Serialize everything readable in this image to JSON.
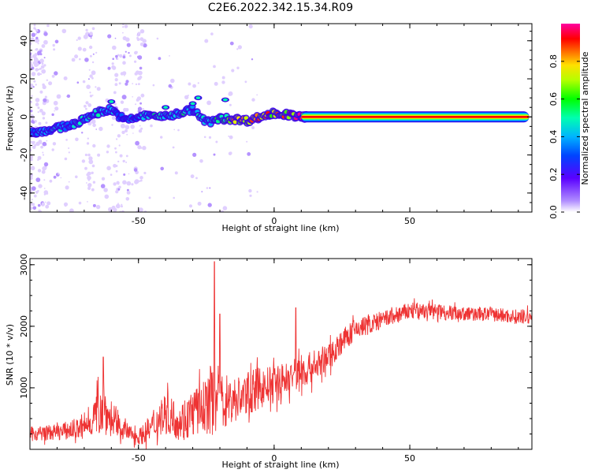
{
  "title": "C2E6.2022.342.15.34.R09",
  "colors": {
    "snr_line": "#ee3333",
    "spectrum_band": "#ff0000",
    "background": "#ffffff"
  },
  "chart_data": [
    {
      "type": "heatmap",
      "name": "spectrogram",
      "xlabel": "Height of straight line (km)",
      "ylabel": "Frequency (Hz)",
      "xlim": [
        -90,
        95
      ],
      "ylim": [
        -50,
        49
      ],
      "x_ticks": [
        -50,
        0,
        50
      ],
      "y_ticks": [
        -40,
        -20,
        0,
        20,
        40
      ],
      "colorbar": {
        "label": "Normalized spectral amplitude",
        "range": [
          0.0,
          1.0
        ],
        "ticks": [
          "0.0",
          "0.2",
          "0.4",
          "0.6",
          "0.8"
        ],
        "colormap": "rainbow (purple → blue → cyan → green → yellow → red → magenta)"
      },
      "ridge": {
        "description": "dominant spectral peak frequency vs height",
        "x": [
          -88,
          -80,
          -72,
          -66,
          -60,
          -55,
          -50,
          -45,
          -40,
          -35,
          -30,
          -25,
          -20,
          -15,
          -10,
          -5,
          0,
          5,
          10,
          20,
          40,
          60,
          80,
          94
        ],
        "y": [
          -8,
          -6,
          -3,
          2,
          4,
          -2,
          0,
          1,
          0,
          2,
          4,
          -3,
          -1,
          -1,
          -2,
          0,
          2,
          1,
          0,
          0,
          0,
          0,
          0,
          0
        ],
        "amplitude": [
          0.4,
          0.45,
          0.45,
          0.5,
          0.45,
          0.35,
          0.45,
          0.5,
          0.5,
          0.55,
          0.5,
          0.45,
          0.6,
          0.8,
          0.85,
          0.85,
          0.85,
          0.9,
          0.95,
          0.97,
          0.97,
          0.97,
          0.97,
          0.97
        ]
      }
    },
    {
      "type": "line",
      "name": "snr",
      "xlabel": "Height of straight line (km)",
      "ylabel": "SNR (10 * v/v)",
      "xlim": [
        -90,
        95
      ],
      "ylim": [
        0,
        3100
      ],
      "x_ticks": [
        -50,
        0,
        50
      ],
      "y_ticks": [
        1000,
        2000,
        3000
      ],
      "envelope": {
        "x": [
          -90,
          -80,
          -70,
          -63,
          -60,
          -55,
          -50,
          -45,
          -40,
          -35,
          -30,
          -25,
          -22,
          -20,
          -15,
          -10,
          -5,
          0,
          5,
          10,
          15,
          20,
          25,
          30,
          40,
          50,
          60,
          70,
          80,
          90,
          94
        ],
        "mean": [
          250,
          280,
          350,
          700,
          450,
          300,
          200,
          350,
          600,
          450,
          600,
          700,
          900,
          800,
          800,
          900,
          1000,
          1050,
          1150,
          1250,
          1350,
          1500,
          1750,
          1950,
          2100,
          2250,
          2250,
          2200,
          2200,
          2150,
          2150
        ],
        "spread": [
          120,
          130,
          180,
          450,
          250,
          150,
          120,
          250,
          350,
          300,
          400,
          450,
          700,
          500,
          400,
          350,
          350,
          300,
          300,
          300,
          250,
          230,
          200,
          180,
          150,
          140,
          130,
          120,
          120,
          120,
          120
        ]
      },
      "peaks": [
        {
          "x": -22,
          "y": 3050
        },
        {
          "x": -20,
          "y": 2200
        },
        {
          "x": -63,
          "y": 1500
        },
        {
          "x": 8,
          "y": 2300
        }
      ]
    }
  ]
}
